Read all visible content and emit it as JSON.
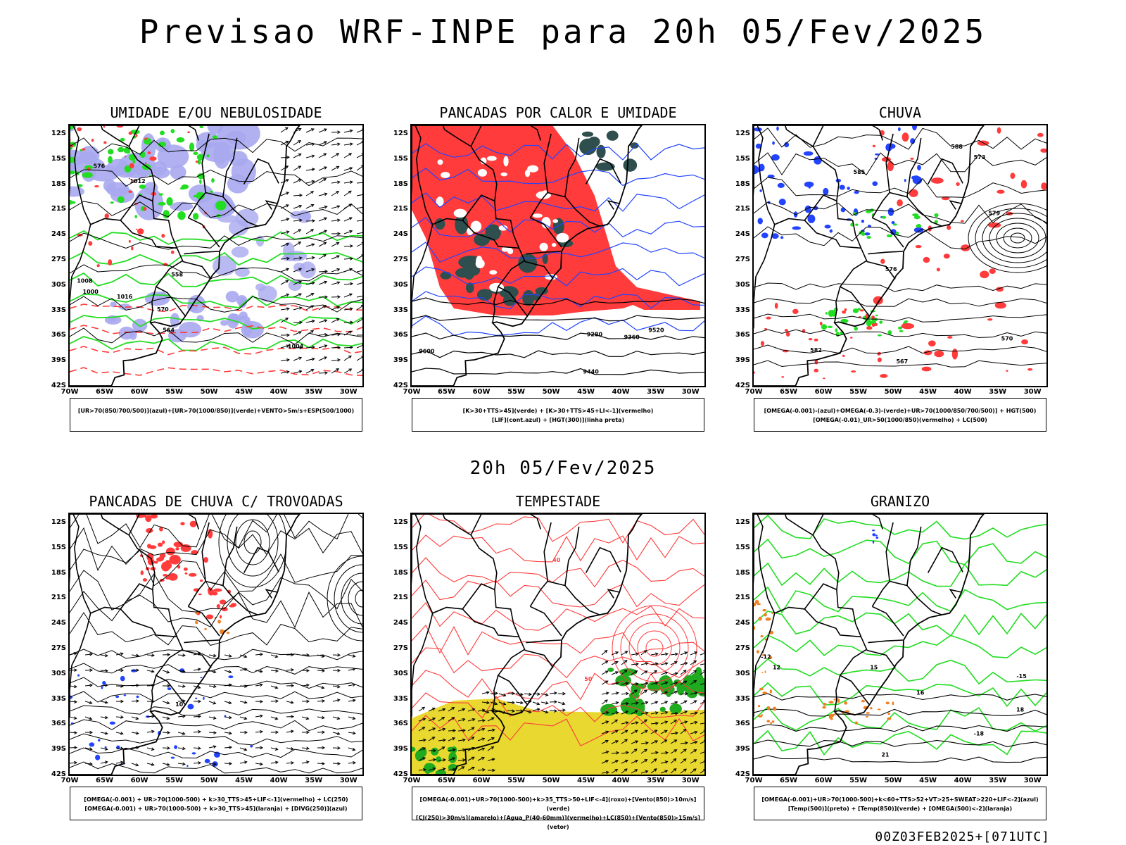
{
  "header": {
    "title": "Previsao WRF-INPE  para 20h 05/Fev/2025"
  },
  "mid_time": "20h 05/Fev/2025",
  "footer": "00Z03FEB2025+[071UTC]",
  "axes": {
    "lat_labels": [
      "12S",
      "15S",
      "18S",
      "21S",
      "24S",
      "27S",
      "30S",
      "33S",
      "36S",
      "39S",
      "42S"
    ],
    "lon_labels": [
      "70W",
      "65W",
      "60W",
      "55W",
      "50W",
      "45W",
      "40W",
      "35W",
      "30W"
    ]
  },
  "colors": {
    "red": "#ff3b3b",
    "green": "#22dd22",
    "blue": "#2244ff",
    "lavender": "#a9a9f0",
    "darkteal": "#2f4f4f",
    "yellow": "#e8d830",
    "orange": "#f08020"
  },
  "panels": [
    {
      "title": "UMIDADE E/OU NEBULOSIDADE",
      "legend": [
        "[UR>70(850/700/500)](azul)+[UR>70(1000/850)](verde)+VENTO>5m/s+ESP(500/1000)"
      ],
      "contour_labels": [
        "1008",
        "1012",
        "1016",
        "1004",
        "1000",
        "576",
        "570",
        "564",
        "558"
      ]
    },
    {
      "title": "PANCADAS POR CALOR E UMIDADE",
      "legend": [
        "[K>30+TTS>45](verde) + [K>30+TTS>45+LI<-1](vermelho)",
        "[LIF](cont.azul) + [HGT(300)](linha preta)"
      ],
      "contour_labels": [
        "9600",
        "9520",
        "9440",
        "9360",
        "9280"
      ]
    },
    {
      "title": "CHUVA",
      "legend": [
        "[OMEGA(-0.001)-(azul)+OMEGA(-0.3)-(verde)+UR>70(1000/850/700/500)] + HGT(500)",
        "[OMEGA(-0.01)_UR>50(1000/850)(vermelho) + LC(500)"
      ],
      "contour_labels": [
        "582",
        "588",
        "585",
        "579",
        "576",
        "573",
        "570",
        "567"
      ]
    },
    {
      "title": "PANCADAS DE CHUVA C/ TROVOADAS",
      "legend": [
        "[OMEGA(-0.001) + UR>70(1000-500) + k>30_TTS>45+LIF<-1](vermelho) + LC(250)",
        "[OMEGA(-0.001) + UR>70(1000-500) + k>30_TTS>45](laranja) + [DIVG(250)](azul)"
      ],
      "contour_labels": [
        "10"
      ]
    },
    {
      "title": "TEMPESTADE",
      "legend": [
        "[OMEGA(-0.001)+UR>70(1000-500)+k>35_TTS>50+LIF<-4](roxo)+[Vento(850)>10m/s](verde)",
        "[CJ(250)>30m/s](amarelo)+[Agua_P(40-60mm)](vermelho)+LC(850)+[Vento(850)>15m/s](vetor)"
      ],
      "contour_labels": [
        "40",
        "50"
      ]
    },
    {
      "title": "GRANIZO",
      "legend": [
        "[OMEGA(-0.001)+UR>70(1000-500)+k<60+TTS>52+VT>25+SWEAT>220+LIF<-2](azul)",
        "[Temp(500)](preto) + [Temp(850)](verde) + [OMEGA(500)<-2](laranja)"
      ],
      "contour_labels": [
        "-12",
        "-15",
        "-18",
        "12",
        "15",
        "18",
        "21",
        "16"
      ]
    }
  ]
}
